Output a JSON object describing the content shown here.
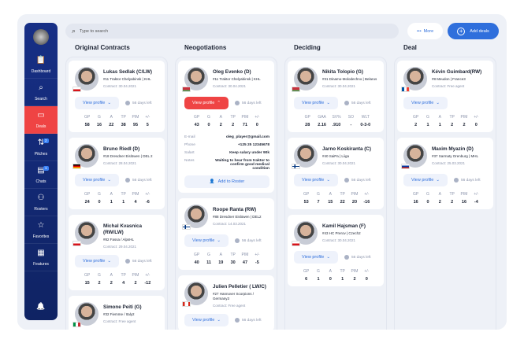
{
  "sidebar": {
    "items": [
      {
        "label": "Dashboard",
        "icon": "clipboard-icon",
        "glyph": "📋"
      },
      {
        "label": "Search",
        "icon": "search-icon",
        "glyph": "⌕"
      },
      {
        "label": "Deals",
        "icon": "wallet-icon",
        "glyph": "▭",
        "active": true
      },
      {
        "label": "Pitches",
        "icon": "arrows-icon",
        "glyph": "⇅",
        "badge": "2"
      },
      {
        "label": "Chats",
        "icon": "chat-icon",
        "glyph": "▤",
        "badge": "1"
      },
      {
        "label": "Rosters",
        "icon": "users-icon",
        "glyph": "⚇"
      },
      {
        "label": "Favorites",
        "icon": "star-icon",
        "glyph": "☆"
      },
      {
        "label": "Features",
        "icon": "grid-icon",
        "glyph": "▦"
      }
    ]
  },
  "header": {
    "search_placeholder": "Type to search",
    "more_label": "More",
    "add_label": "Add deals"
  },
  "colors": {
    "accent": "#2f6fdc",
    "active": "#ef4444",
    "sidebar": "#172f86"
  },
  "columns": [
    {
      "title": "Original Contracts",
      "cards": [
        {
          "name": "Lukas Sedlak (C/LW)",
          "team": "#11 Traktor Chelyabinsk | KHL",
          "contract": "Contract: 30.04.2021",
          "flag": "cz",
          "days": "56 days left",
          "view": "View profile",
          "stats": {
            "keys": [
              "GP",
              "G",
              "A",
              "TP",
              "PIM",
              "+/-"
            ],
            "values": [
              "58",
              "16",
              "22",
              "38",
              "95",
              "5"
            ]
          }
        },
        {
          "name": "Bruno Riedl (D)",
          "team": "#18 Dresdner Eislöwen | DEL 2",
          "contract": "Contract: 28.04.2021",
          "flag": "de",
          "days": "56 days left",
          "view": "View profile",
          "stats": {
            "keys": [
              "GP",
              "G",
              "A",
              "TP",
              "PIM",
              "+/-"
            ],
            "values": [
              "24",
              "0",
              "1",
              "1",
              "4",
              "-6"
            ]
          }
        },
        {
          "name": "Michal Kvasnica (RW/LW)",
          "team": "#82 Fassa / AlpsHL",
          "contract": "Contract: 29.04.2021",
          "flag": "cz",
          "days": "56 days left",
          "view": "View profile",
          "stats": {
            "keys": [
              "GP",
              "G",
              "A",
              "TP",
              "PIM",
              "+/-"
            ],
            "values": [
              "15",
              "2",
              "2",
              "4",
              "2",
              "-12"
            ]
          }
        },
        {
          "name": "Simone Peiti (G)",
          "team": "#32 Fiemme / Italy2",
          "contract": "Contract: Free agent",
          "flag": "it",
          "days": "56 days left",
          "view": "View profile"
        }
      ]
    },
    {
      "title": "Neogotiations",
      "cards": [
        {
          "name": "Oleg Evenko (D)",
          "team": "#11 Traktor Chelyabinsk | KHL",
          "contract": "Contract: 30.04.2021",
          "flag": "by",
          "days": "56 days left",
          "view": "View profile",
          "open": true,
          "stats": {
            "keys": [
              "GP",
              "G",
              "A",
              "TP",
              "PIM",
              "+/-"
            ],
            "values": [
              "43",
              "0",
              "2",
              "2",
              "71",
              "0"
            ]
          },
          "details": [
            {
              "k": "E-mail",
              "v": "oleg_player@gmail.com"
            },
            {
              "k": "Phone",
              "v": "+125 25 12345678"
            },
            {
              "k": "Salart",
              "v": "Keep salary under 90k"
            },
            {
              "k": "Notes",
              "v": "Waiting to hear from traktor to confirm good medical condition"
            }
          ],
          "roster": "Add to Roster"
        },
        {
          "name": "Roope Ranta (RW)",
          "team": "#88 Dresdner Eislöwen | DEL2",
          "contract": "Contract: 14.03.2021",
          "flag": "fi",
          "days": "56 days left",
          "view": "View profile",
          "stats": {
            "keys": [
              "GP",
              "G",
              "A",
              "TP",
              "PIM",
              "+/-"
            ],
            "values": [
              "40",
              "11",
              "19",
              "30",
              "47",
              "-5"
            ]
          }
        },
        {
          "name": "Julien Pelletier ( LW/C)",
          "team": "#27 Hannover Scorpions / Germany3",
          "contract": "Contract: Free agent",
          "flag": "ca",
          "days": "56 days left",
          "view": "View profile"
        }
      ]
    },
    {
      "title": "Deciding",
      "cards": [
        {
          "name": "Nikita Tolopio (G)",
          "team": "#31 Dinamo-Molodechno | Belarus",
          "contract": "Contract: 30.04.2021",
          "flag": "by",
          "days": "56 days left",
          "view": "View profile",
          "stats": {
            "keys": [
              "GP",
              "GAA",
              "SV%",
              "SO",
              "WLT"
            ],
            "values": [
              "28",
              "2.16",
              ".910",
              "-",
              "0-3-0"
            ]
          }
        },
        {
          "name": "Jarno Koskiranta (C)",
          "team": "#40 SaiPa | Liiga",
          "contract": "Contract: 30.04.2021",
          "flag": "fi",
          "days": "56 days left",
          "view": "View profile",
          "stats": {
            "keys": [
              "GP",
              "G",
              "A",
              "TP",
              "PIM",
              "+/-"
            ],
            "values": [
              "53",
              "7",
              "15",
              "22",
              "20",
              "-16"
            ]
          }
        },
        {
          "name": "Kamil Hajsman (F)",
          "team": "#43 HC Prerov | Czech2",
          "contract": "Contract: 30.04.2021",
          "flag": "cz",
          "days": "56 days left",
          "view": "View profile",
          "stats": {
            "keys": [
              "GP",
              "G",
              "A",
              "TP",
              "PIM",
              "+/-"
            ],
            "values": [
              "6",
              "1",
              "0",
              "1",
              "2",
              "0"
            ]
          }
        }
      ]
    },
    {
      "title": "Deal",
      "cards": [
        {
          "name": "Kévin Guimbard(RW)",
          "team": "#8 Meudon | France3",
          "contract": "Contract: Free agent",
          "flag": "fr",
          "view": "View profile",
          "stats": {
            "keys": [
              "GP",
              "G",
              "A",
              "TP",
              "PIM",
              "+/-"
            ],
            "values": [
              "2",
              "1",
              "1",
              "2",
              "2",
              "0"
            ]
          }
        },
        {
          "name": "Maxim Myazin (D)",
          "team": "#37 Sarmaty Orenburg | MHL",
          "contract": "Contract: 25.03.2021",
          "flag": "ru",
          "days": "56 days left",
          "view": "View profile",
          "stats": {
            "keys": [
              "GP",
              "G",
              "A",
              "TP",
              "PIM",
              "+/-"
            ],
            "values": [
              "16",
              "0",
              "2",
              "2",
              "16",
              "-4"
            ]
          }
        }
      ]
    }
  ]
}
